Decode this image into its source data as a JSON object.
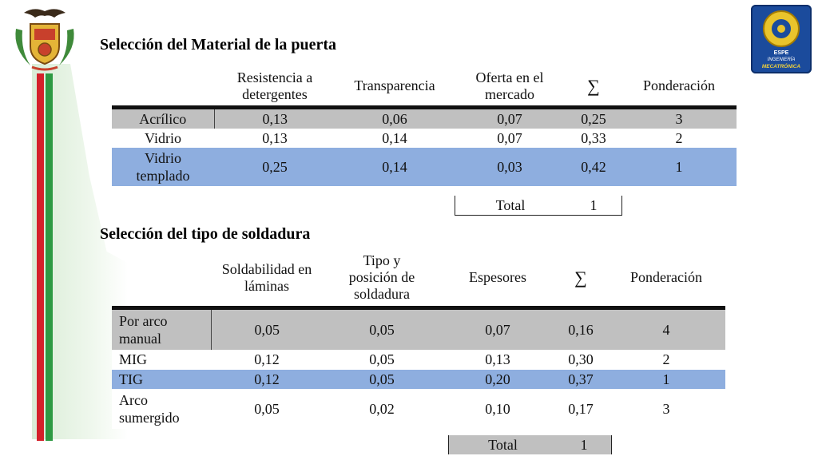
{
  "section1": {
    "title": "Selección del Material de la puerta",
    "headers": [
      "",
      "Resistencia a detergentes",
      "Transparencia",
      "Oferta en el mercado",
      "∑",
      "Ponderación"
    ],
    "rows": [
      {
        "label": "Acrílico",
        "values": [
          "0,13",
          "0,06",
          "0,07",
          "0,25",
          "3"
        ]
      },
      {
        "label": "Vidrio",
        "values": [
          "0,13",
          "0,14",
          "0,07",
          "0,33",
          "2"
        ]
      },
      {
        "label": "Vidrio templado",
        "values": [
          "0,25",
          "0,14",
          "0,03",
          "0,42",
          "1"
        ]
      }
    ],
    "total_label": "Total",
    "total_value": "1"
  },
  "section2": {
    "title": "Selección del tipo de soldadura",
    "headers": [
      "",
      "Soldabilidad en láminas",
      "Tipo y posición de soldadura",
      "Espesores",
      "∑",
      "Ponderación"
    ],
    "rows": [
      {
        "label": "Por arco manual",
        "values": [
          "0,05",
          "0,05",
          "0,07",
          "0,16",
          "4"
        ]
      },
      {
        "label": "MIG",
        "values": [
          "0,12",
          "0,05",
          "0,13",
          "0,30",
          "2"
        ]
      },
      {
        "label": "TIG",
        "values": [
          "0,12",
          "0,05",
          "0,20",
          "0,37",
          "1"
        ]
      },
      {
        "label": "Arco sumergido",
        "values": [
          "0,05",
          "0,02",
          "0,10",
          "0,17",
          "3"
        ]
      }
    ],
    "total_label": "Total",
    "total_value": "1"
  },
  "logo": {
    "icon": "espe-mecatronica-logo-icon",
    "line1": "ESPE",
    "line2": "INGENIERÍA",
    "line3": "MECATRÓNICA"
  },
  "crest": {
    "icon": "coat-of-arms-icon"
  },
  "colors": {
    "red_stripe": "#d4212a",
    "green_stripe": "#2e9a43",
    "row_gray": "#c0c0c0",
    "row_blue": "#8eaedf",
    "logo_blue": "#1b4b9c"
  }
}
